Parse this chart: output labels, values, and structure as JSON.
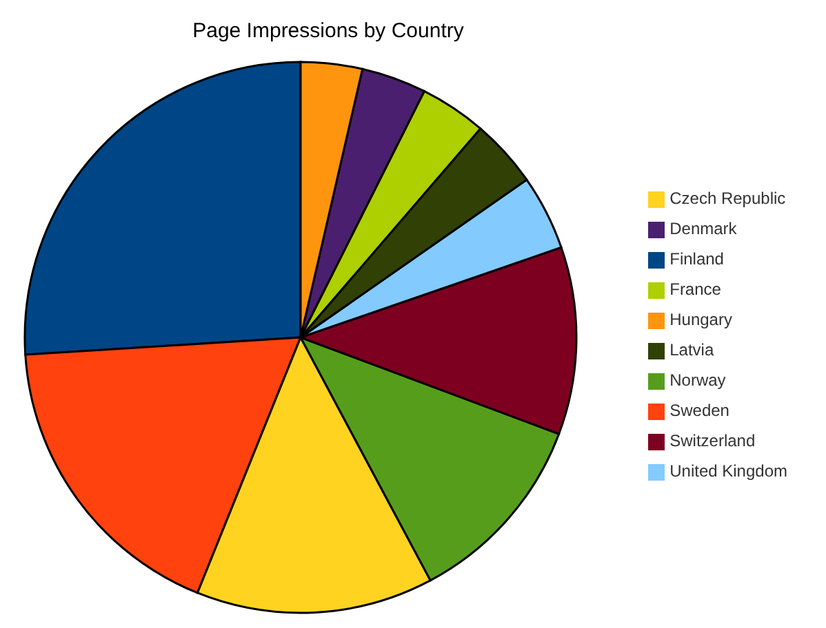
{
  "chart_data": {
    "type": "pie",
    "title": "Page Impressions by Country",
    "categories": [
      "Finland",
      "Sweden",
      "Czech Republic",
      "Norway",
      "Switzerland",
      "United Kingdom",
      "Latvia",
      "France",
      "Denmark",
      "Hungary"
    ],
    "values": [
      26,
      17.9,
      13.9,
      11.5,
      11,
      4.4,
      4,
      3.9,
      3.8,
      3.6
    ],
    "colors": [
      "#004586",
      "#ff420e",
      "#ffd320",
      "#579d1c",
      "#7e0021",
      "#83caff",
      "#314004",
      "#aecf00",
      "#4b1f6f",
      "#ff950e"
    ],
    "legend": "right"
  }
}
